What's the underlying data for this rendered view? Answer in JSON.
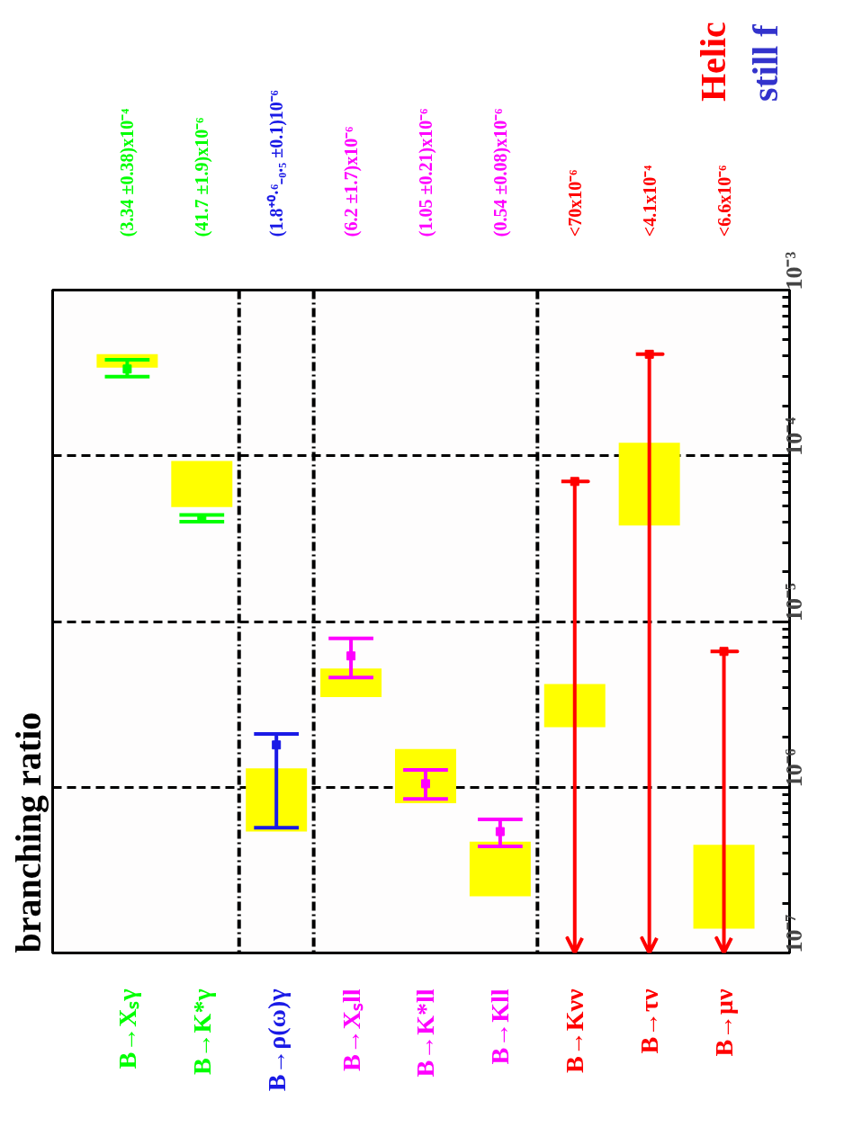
{
  "chart_data": {
    "type": "bar",
    "title": "branching ratio",
    "categories": [
      "B→Xₛγ",
      "B→K*γ",
      "B→ρ(ω)γ",
      "B→Xₛll",
      "B→K*ll",
      "B→Kll",
      "B→Kνν",
      "B→τν",
      "B→μν"
    ],
    "log": "y",
    "ylim": [
      1e-07,
      0.001
    ],
    "yticks": [
      {
        "value": 1e-07,
        "label": "10⁻⁷"
      },
      {
        "value": 1e-06,
        "label": "10⁻⁶"
      },
      {
        "value": 1e-05,
        "label": "10⁻⁵"
      },
      {
        "value": 0.0001,
        "label": "10⁻⁴"
      },
      {
        "value": 0.001,
        "label": "10⁻³"
      }
    ],
    "grid": true,
    "series": [
      {
        "color": "#ffff00",
        "base": [
          0.00034,
          4.9e-05,
          5.4e-07,
          3.5e-06,
          8e-07,
          2.2e-07,
          2.3e-06,
          3.8e-05,
          1.4e-07
        ],
        "values": [
          7e-05,
          4.4e-05,
          7.6e-07,
          1.7e-06,
          9e-07,
          2.5e-07,
          1.9e-06,
          8.2e-05,
          3.1e-07
        ]
      },
      {
        "type": "scatter",
        "marker": "square",
        "colors": [
          "#00ff00",
          "#00ff00",
          "#1a1ae6",
          "#ff00ff",
          "#ff00ff",
          "#ff00ff",
          "#ff0000",
          "#ff0000",
          "#ff0000"
        ],
        "values": [
          0.000334,
          4.17e-05,
          1.8e-06,
          6.2e-06,
          1.05e-06,
          5.4e-07,
          7e-05,
          0.00041,
          6.6e-06
        ],
        "errors": [
          [
            0.0003,
            0.00038
          ],
          [
            4e-05,
            4.4e-05
          ],
          [
            5.7e-07,
            2.1e-06
          ],
          [
            4.6e-06,
            7.9e-06
          ],
          [
            8.5e-07,
            1.27e-06
          ],
          [
            4.4e-07,
            6.4e-07
          ],
          [
            1e-07,
            7e-05
          ],
          [
            1e-07,
            0.00041
          ],
          [
            1e-07,
            6.6e-06
          ]
        ],
        "value_labels": [
          "(3.34 ±0.38)x10⁻⁴",
          "(41.7 ±1.9)x10⁻⁶",
          "(1.8⁺⁰·⁶₋₀.₅ ±0.1)10⁻⁶",
          "(6.2 ±1.7)x10⁻⁶",
          "(1.05 ±0.21)x10⁻⁶",
          "(0.54 ±0.08)x10⁻⁶",
          "<70x10⁻⁶",
          "<4.1x10⁻⁴",
          "<6.6x10⁻⁶"
        ]
      }
    ],
    "annotations": [
      "Helic",
      "still f"
    ]
  }
}
